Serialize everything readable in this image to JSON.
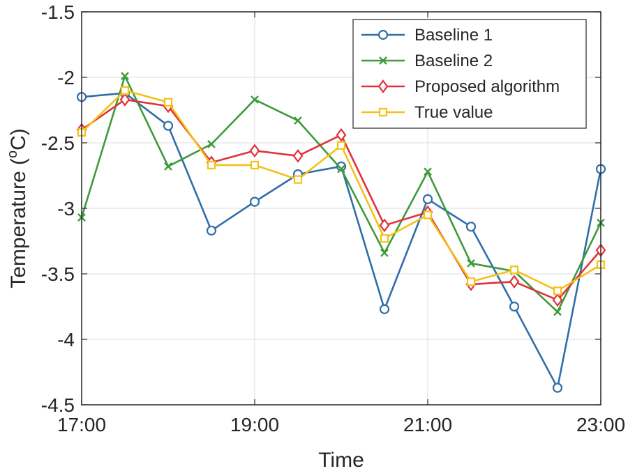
{
  "chart_data": {
    "type": "line",
    "title": "",
    "xlabel": "Time",
    "ylabel_main": "Temperature (",
    "ylabel_sup": "o",
    "ylabel_end": "C)",
    "xlim": [
      0,
      12
    ],
    "ylim": [
      -4.5,
      -1.5
    ],
    "x": [
      0,
      1,
      2,
      3,
      4,
      5,
      6,
      7,
      8,
      9,
      10,
      11,
      12
    ],
    "xticks": [
      {
        "value": 0,
        "label": "17:00"
      },
      {
        "value": 4,
        "label": "19:00"
      },
      {
        "value": 8,
        "label": "21:00"
      },
      {
        "value": 12,
        "label": "23:00"
      }
    ],
    "yticks": [
      {
        "value": -1.5,
        "label": "-1.5"
      },
      {
        "value": -2,
        "label": "-2"
      },
      {
        "value": -2.5,
        "label": "-2.5"
      },
      {
        "value": -3,
        "label": "-3"
      },
      {
        "value": -3.5,
        "label": "-3.5"
      },
      {
        "value": -4,
        "label": "-4"
      },
      {
        "value": -4.5,
        "label": "-4.5"
      }
    ],
    "grid": true,
    "legend_position": "top-right",
    "series": [
      {
        "name": "Baseline 1",
        "color": "#2f6ea8",
        "marker": "circle",
        "values": [
          -2.15,
          -2.12,
          -2.37,
          -3.17,
          -2.95,
          -2.74,
          -2.68,
          -3.77,
          -2.93,
          -3.14,
          -3.75,
          -4.37,
          -2.7
        ]
      },
      {
        "name": "Baseline 2",
        "color": "#3e9a3a",
        "marker": "x",
        "values": [
          -3.07,
          -1.99,
          -2.68,
          -2.51,
          -2.17,
          -2.33,
          -2.7,
          -3.34,
          -2.72,
          -3.42,
          -3.48,
          -3.79,
          -3.11
        ]
      },
      {
        "name": "Proposed algorithm",
        "color": "#e0323a",
        "marker": "diamond",
        "values": [
          -2.4,
          -2.17,
          -2.22,
          -2.65,
          -2.56,
          -2.6,
          -2.44,
          -3.13,
          -3.03,
          -3.58,
          -3.56,
          -3.7,
          -3.32
        ]
      },
      {
        "name": "True value",
        "color": "#f2c218",
        "marker": "square",
        "values": [
          -2.42,
          -2.1,
          -2.19,
          -2.67,
          -2.67,
          -2.78,
          -2.52,
          -3.23,
          -3.05,
          -3.56,
          -3.47,
          -3.63,
          -3.43
        ]
      }
    ]
  }
}
